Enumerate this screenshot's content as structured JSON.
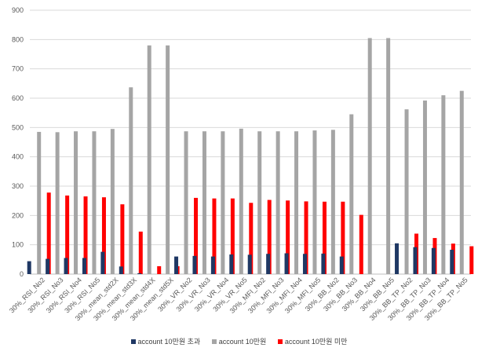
{
  "chart_data": {
    "type": "bar",
    "categories": [
      "30%_RSI_No2",
      "30%_RSI_No3",
      "30%_RSI_No4",
      "30%_RSI_No5",
      "30%_mean_std2X",
      "30%_mean_std3X",
      "30%_mean_std4X",
      "30%_mean_std5X",
      "30%_VR_No2",
      "30%_VR_No3",
      "30%_VR_No4",
      "30%_VR_No5",
      "30%_MFI_No2",
      "30%_MFI_No3",
      "30%_MFI_No4",
      "30%_MFI_No5",
      "30%_BB_No2",
      "30%_BB_No3",
      "30%_BB_No4",
      "30%_BB_No5",
      "30%_BB_TP_No2",
      "30%_BB_TP_No3",
      "30%_BB_TP_No4",
      "30%_BB_TP_No5"
    ],
    "series": [
      {
        "name": "account 10만원 초과",
        "color": "#1f3864",
        "values": [
          44,
          52,
          55,
          55,
          76,
          26,
          3,
          0,
          60,
          62,
          60,
          67,
          66,
          69,
          71,
          69,
          70,
          60,
          0,
          0,
          105,
          92,
          89,
          83
        ]
      },
      {
        "name": "account 10만원",
        "color": "#a5a5a5",
        "values": [
          485,
          484,
          487,
          487,
          495,
          637,
          780,
          780,
          487,
          487,
          487,
          496,
          487,
          487,
          487,
          490,
          492,
          545,
          805,
          805,
          562,
          592,
          610,
          625
        ]
      },
      {
        "name": "account 10만원 미만",
        "color": "#ff0000",
        "values": [
          278,
          268,
          265,
          262,
          238,
          145,
          27,
          27,
          260,
          258,
          258,
          243,
          253,
          251,
          248,
          247,
          247,
          202,
          0,
          0,
          138,
          123,
          104,
          95
        ]
      }
    ],
    "yticks": [
      0,
      100,
      200,
      300,
      400,
      500,
      600,
      700,
      800,
      900
    ],
    "ylim": [
      0,
      900
    ],
    "grid": true,
    "legend_position": "bottom"
  }
}
